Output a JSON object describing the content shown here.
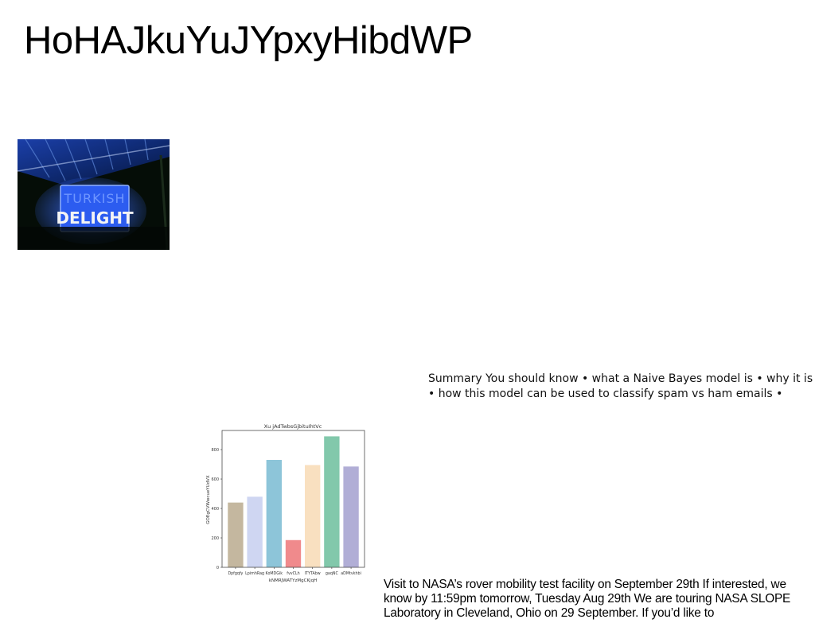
{
  "page": {
    "title": "HoHAJkuYuJYpxyHibdWP"
  },
  "photo": {
    "sign_line1": "TURKISH",
    "sign_line2": "DELIGHT"
  },
  "summary": {
    "text": "Summary You should know • what a Naive Bayes model is • why it is • how this model can be used to classify spam vs ham emails •"
  },
  "chart_data": {
    "type": "bar",
    "title": "Xu jAdTwbsGjbituIhtVc",
    "xlabel": "kNMRJWATYzMgCKjqH",
    "ylabel": "GOEgCVWwcueYUdVX",
    "categories": [
      "Dpfgqfy",
      "LpimhRag",
      "KoMDGik",
      "fvvCLh",
      "ITYTAbw",
      "gaqNC",
      "aDMtvkhbi"
    ],
    "values": [
      440,
      480,
      730,
      185,
      695,
      890,
      685
    ],
    "colors": [
      "#c4b79f",
      "#cfd6f2",
      "#8dc5d9",
      "#f08a8c",
      "#f9e0c0",
      "#82c8ab",
      "#b1aed6"
    ],
    "ylim": [
      0,
      930
    ],
    "yticks": [
      0,
      200,
      400,
      600,
      800
    ],
    "grid": false
  },
  "visit": {
    "text": "Visit to NASA’s rover mobility test facility on September 29th If interested, we know by 11:59pm tomorrow, Tuesday Aug 29th We are touring NASA SLOPE Laboratory in Cleveland, Ohio on 29 September. If you’d like to"
  }
}
